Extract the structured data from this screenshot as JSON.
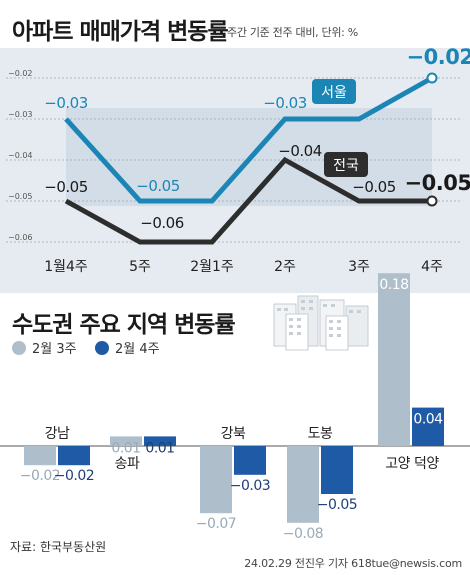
{
  "header": {
    "title": "아파트 매매가격 변동률",
    "note": "주간 기준 전주 대비, 단위: %"
  },
  "colors": {
    "seoul": "#1b86b5",
    "national": "#2d2d2d",
    "week3": "#aebfcb",
    "week4": "#1f5aa6"
  },
  "chart_data": [
    {
      "type": "line",
      "categories": [
        "1월4주",
        "5주",
        "2월1주",
        "2주",
        "3주",
        "4주"
      ],
      "series": [
        {
          "name": "서울",
          "values": [
            -0.03,
            -0.05,
            -0.05,
            -0.03,
            -0.03,
            -0.02
          ],
          "labels": [
            "-0.03",
            "-0.05",
            "",
            "-0.03",
            "",
            "-0.02"
          ]
        },
        {
          "name": "전국",
          "values": [
            -0.05,
            -0.06,
            -0.06,
            -0.04,
            -0.05,
            -0.05
          ],
          "labels": [
            "-0.05",
            "-0.06",
            "",
            "-0.04",
            "-0.05",
            "-0.05"
          ]
        }
      ],
      "yticks": [
        "-0.02",
        "-0.03",
        "-0.04",
        "-0.05",
        "-0.06"
      ],
      "ylim": [
        -0.06,
        -0.02
      ],
      "grid": true
    },
    {
      "type": "bar",
      "title": "수도권 주요 지역 변동률",
      "categories": [
        "강남",
        "송파",
        "강북",
        "도봉",
        "고양 덕양"
      ],
      "series": [
        {
          "name": "2월 3주",
          "values": [
            -0.02,
            0.01,
            -0.07,
            -0.08,
            0.18
          ],
          "labels": [
            "-0.02",
            "0.01",
            "-0.07",
            "-0.08",
            "0.18"
          ]
        },
        {
          "name": "2월 4주",
          "values": [
            -0.02,
            0.01,
            -0.03,
            -0.05,
            0.04
          ],
          "labels": [
            "-0.02",
            "0.01",
            "-0.03",
            "-0.05",
            "0.04"
          ]
        }
      ]
    }
  ],
  "footer": {
    "source": "자료: 한국부동산원",
    "credit": "24.02.29 전진우 기자 618tue@newsis.com"
  }
}
